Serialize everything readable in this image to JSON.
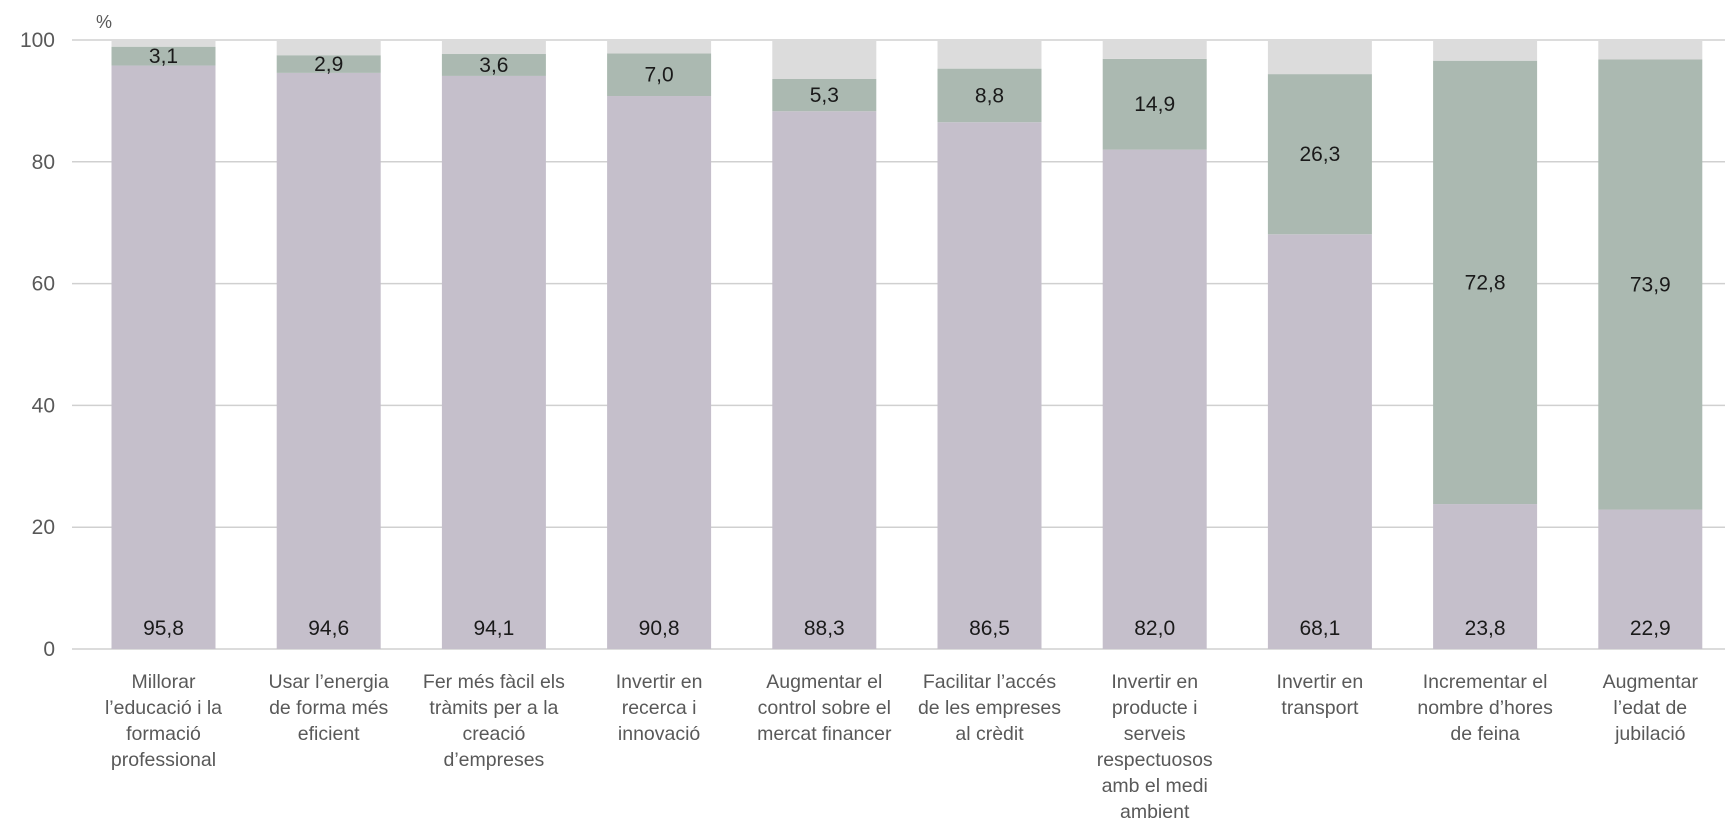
{
  "chart_data": {
    "type": "bar",
    "stacked": true,
    "ylabel": "%",
    "ylim": [
      0,
      100
    ],
    "yticks": [
      "0",
      "20",
      "40",
      "60",
      "80",
      "100"
    ],
    "grid": true,
    "categories": [
      [
        "Millorar",
        "l’educació i la",
        "formació",
        "professional"
      ],
      [
        "Usar l’energia",
        "de forma més",
        "eficient"
      ],
      [
        "Fer més fàcil els",
        "tràmits per a la",
        "creació",
        "d’empreses"
      ],
      [
        "Invertir en",
        "recerca i",
        "innovació"
      ],
      [
        "Augmentar el",
        "control sobre el",
        "mercat financer"
      ],
      [
        "Facilitar l’accés",
        "de les empreses",
        "al crèdit"
      ],
      [
        "Invertir en",
        "producte i",
        "serveis",
        "respectuosos",
        "amb el medi",
        "ambient"
      ],
      [
        "Invertir en",
        "transport"
      ],
      [
        "Incrementar el",
        "nombre d’hores",
        "de feina"
      ],
      [
        "Augmentar",
        "l’edat de",
        "jubilació"
      ]
    ],
    "series": [
      {
        "color": "#c5bfcb",
        "values": [
          95.8,
          94.6,
          94.1,
          90.8,
          88.3,
          86.5,
          82.0,
          68.1,
          23.8,
          22.9
        ],
        "labels": [
          "95,8",
          "94,6",
          "94,1",
          "90,8",
          "88,3",
          "86,5",
          "82,0",
          "68,1",
          "23,8",
          "22,9"
        ]
      },
      {
        "color": "#abb9b1",
        "values": [
          3.1,
          2.9,
          3.6,
          7.0,
          5.3,
          8.8,
          14.9,
          26.3,
          72.8,
          73.9
        ],
        "labels": [
          "3,1",
          "2,9",
          "3,6",
          "7,0",
          "5,3",
          "8,8",
          "14,9",
          "26,3",
          "72,8",
          "73,9"
        ]
      },
      {
        "color": "#dcdcdc",
        "values": [
          1.1,
          2.5,
          2.3,
          2.2,
          6.4,
          4.7,
          3.1,
          5.6,
          3.4,
          3.2
        ],
        "labels": []
      }
    ]
  }
}
